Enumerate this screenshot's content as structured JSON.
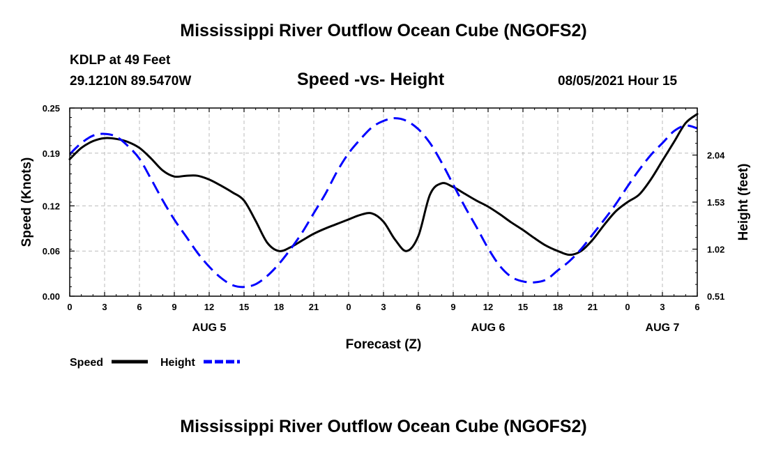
{
  "page": {
    "title": "Mississippi River Outflow Ocean Cube (NGOFS2)",
    "footer_title": "Mississippi River Outflow Ocean Cube (NGOFS2)",
    "station": "KDLP at 49 Feet",
    "coords": "29.1210N  89.5470W",
    "subtitle": "Speed -vs- Height",
    "datetime": "08/05/2021 Hour 15"
  },
  "chart_data": {
    "type": "line",
    "title": "Speed -vs- Height",
    "xlabel": "Forecast (Z)",
    "ylabel_left": "Speed (Knots)",
    "ylabel_right": "Height (feet)",
    "x_range": [
      0,
      54
    ],
    "ylim_left": [
      0,
      0.25
    ],
    "ylim_right": [
      0.51,
      2.55
    ],
    "x_ticks": [
      0,
      3,
      6,
      9,
      12,
      15,
      18,
      21,
      24,
      27,
      30,
      33,
      36,
      39,
      42,
      45,
      48,
      51,
      54
    ],
    "x_tick_labels": [
      "0",
      "3",
      "6",
      "9",
      "12",
      "15",
      "18",
      "21",
      "0",
      "3",
      "6",
      "9",
      "12",
      "15",
      "18",
      "21",
      "0",
      "3",
      "6"
    ],
    "left_ticks": [
      0.0,
      0.06,
      0.12,
      0.19,
      0.25
    ],
    "left_tick_labels": [
      "0.00",
      "0.06",
      "0.12",
      "0.19",
      "0.25"
    ],
    "right_ticks": [
      0.51,
      1.02,
      1.53,
      2.04
    ],
    "right_tick_labels": [
      "0.51",
      "1.02",
      "1.53",
      "2.04"
    ],
    "day_labels": [
      {
        "x": 12,
        "label": "AUG 5"
      },
      {
        "x": 36,
        "label": "AUG 6"
      },
      {
        "x": 51,
        "label": "AUG 7"
      }
    ],
    "grid": true,
    "legend_position": "bottom-left",
    "series": [
      {
        "name": "Speed",
        "axis": "left",
        "color": "#000000",
        "style": "solid",
        "x": [
          0,
          1,
          2,
          3,
          4,
          5,
          6,
          7,
          8,
          9,
          10,
          11,
          12,
          13,
          14,
          15,
          16,
          17,
          18,
          19,
          20,
          21,
          22,
          23,
          24,
          25,
          26,
          27,
          28,
          29,
          30,
          31,
          32,
          33,
          34,
          35,
          36,
          37,
          38,
          39,
          40,
          41,
          42,
          43,
          44,
          45,
          46,
          47,
          48,
          49,
          50,
          51,
          52,
          53,
          54
        ],
        "values": [
          0.182,
          0.197,
          0.206,
          0.21,
          0.209,
          0.205,
          0.197,
          0.183,
          0.167,
          0.159,
          0.16,
          0.16,
          0.155,
          0.147,
          0.138,
          0.127,
          0.1,
          0.071,
          0.06,
          0.065,
          0.074,
          0.083,
          0.09,
          0.096,
          0.102,
          0.108,
          0.11,
          0.099,
          0.075,
          0.06,
          0.08,
          0.135,
          0.15,
          0.145,
          0.136,
          0.127,
          0.119,
          0.109,
          0.098,
          0.088,
          0.077,
          0.067,
          0.06,
          0.055,
          0.06,
          0.075,
          0.095,
          0.113,
          0.125,
          0.135,
          0.155,
          0.18,
          0.205,
          0.23,
          0.242
        ]
      },
      {
        "name": "Height",
        "axis": "right",
        "color": "#0000ff",
        "style": "dashed",
        "x": [
          0,
          1,
          2,
          3,
          4,
          5,
          6,
          7,
          8,
          9,
          10,
          11,
          12,
          13,
          14,
          15,
          16,
          17,
          18,
          19,
          20,
          21,
          22,
          23,
          24,
          25,
          26,
          27,
          28,
          29,
          30,
          31,
          32,
          33,
          34,
          35,
          36,
          37,
          38,
          39,
          40,
          41,
          42,
          43,
          44,
          45,
          46,
          47,
          48,
          49,
          50,
          51,
          52,
          53,
          54
        ],
        "values": [
          2.05,
          2.17,
          2.25,
          2.27,
          2.24,
          2.14,
          2.0,
          1.78,
          1.55,
          1.34,
          1.16,
          0.98,
          0.83,
          0.71,
          0.63,
          0.61,
          0.64,
          0.73,
          0.86,
          1.02,
          1.2,
          1.41,
          1.62,
          1.86,
          2.06,
          2.21,
          2.34,
          2.41,
          2.44,
          2.41,
          2.32,
          2.17,
          1.96,
          1.72,
          1.48,
          1.26,
          1.03,
          0.84,
          0.72,
          0.67,
          0.66,
          0.69,
          0.79,
          0.89,
          1.02,
          1.18,
          1.34,
          1.51,
          1.7,
          1.88,
          2.04,
          2.17,
          2.3,
          2.36,
          2.33
        ]
      }
    ]
  }
}
